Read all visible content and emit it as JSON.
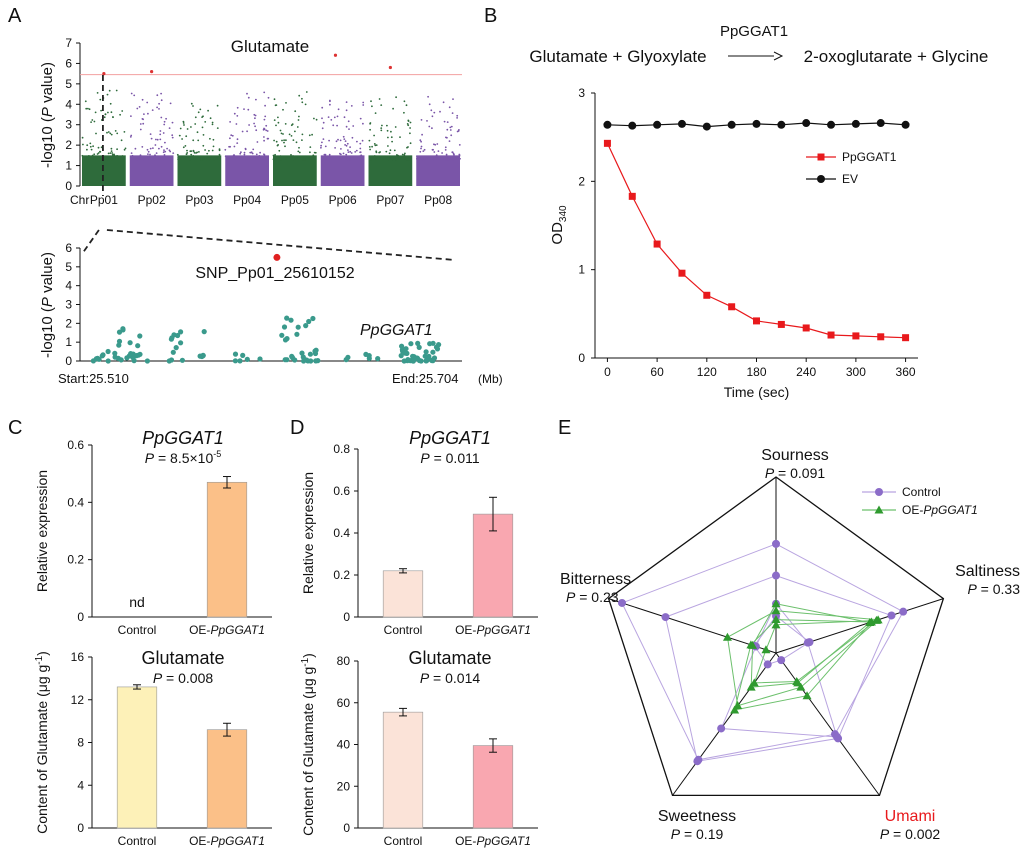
{
  "panels": {
    "a": "A",
    "b": "B",
    "c": "C",
    "d": "D",
    "e": "E"
  },
  "chart_data": [
    {
      "id": "A-manhattan",
      "type": "scatter",
      "title": "Glutamate",
      "ylabel": "-log10 (P value)",
      "ylabel_parts": {
        "pre": "-log10 (",
        "italic": "P",
        "post": " value)"
      },
      "xlabel": "Chr",
      "ylim": [
        0,
        7
      ],
      "yticks": [
        0,
        1,
        2,
        3,
        4,
        5,
        6,
        7
      ],
      "chromosomes": [
        "Pp01",
        "Pp02",
        "Pp03",
        "Pp04",
        "Pp05",
        "Pp06",
        "Pp07",
        "Pp08"
      ],
      "chromosome_colors": [
        "#2e6b3b",
        "#7a55a8",
        "#2e6b3b",
        "#7a55a8",
        "#2e6b3b",
        "#7a55a8",
        "#2e6b3b",
        "#7a55a8"
      ],
      "typical_max_neglog10p": [
        4.7,
        4.6,
        4.2,
        4.6,
        5.0,
        4.4,
        4.6,
        4.4
      ],
      "threshold": 5.45,
      "top_hits": [
        {
          "chr": "Pp01",
          "value": 5.5
        },
        {
          "chr": "Pp02",
          "value": 5.6
        },
        {
          "chr": "Pp06",
          "value": 6.4
        },
        {
          "chr": "Pp07",
          "value": 5.8
        }
      ]
    },
    {
      "id": "A-zoom",
      "type": "scatter",
      "ylabel": "-log10 (P value)",
      "ylabel_parts": {
        "pre": "-log10 (",
        "italic": "P",
        "post": " value)"
      },
      "ylim": [
        0,
        6
      ],
      "yticks": [
        0,
        1,
        2,
        3,
        4,
        5,
        6
      ],
      "start_label": "Start:25.510",
      "end_label": "End:25.704",
      "unit": "(Mb)",
      "snp_label": "SNP_Pp01_25610152",
      "gene_label": "PpGGAT1",
      "snp": {
        "position_mb": 25.61,
        "value": 5.5
      },
      "point_color": "#3a9a8c",
      "snp_color": "#e02020"
    },
    {
      "id": "B-enzyme-assay",
      "type": "line",
      "reaction": {
        "enzyme": "PpGGAT1",
        "substrates": "Glutamate + Glyoxylate",
        "products": "2-oxoglutarate + Glycine"
      },
      "xlabel": "Time (sec)",
      "ylabel": "OD",
      "ylabel_sub": "340",
      "xlim": [
        -15,
        375
      ],
      "ylim": [
        0,
        3
      ],
      "xticks": [
        0,
        60,
        120,
        180,
        240,
        300,
        360
      ],
      "yticks": [
        0,
        1,
        2,
        3
      ],
      "x": [
        0,
        30,
        60,
        90,
        120,
        150,
        180,
        210,
        240,
        270,
        300,
        330,
        360
      ],
      "series": [
        {
          "name": "PpGGAT1",
          "color": "#e8191c",
          "marker": "square",
          "values": [
            2.43,
            1.83,
            1.29,
            0.96,
            0.71,
            0.58,
            0.42,
            0.38,
            0.34,
            0.26,
            0.25,
            0.24,
            0.23
          ]
        },
        {
          "name": "EV",
          "color": "#111111",
          "marker": "circle",
          "values": [
            2.64,
            2.63,
            2.64,
            2.65,
            2.62,
            2.64,
            2.65,
            2.64,
            2.66,
            2.64,
            2.65,
            2.66,
            2.64
          ]
        }
      ],
      "legend_position": "right"
    },
    {
      "id": "C-top",
      "type": "bar",
      "title": "PpGGAT1",
      "p_text": "P = 8.5×10",
      "p_exp": "-5",
      "ylabel": "Relative expression",
      "categories": [
        "Control",
        "OE-PpGGAT1"
      ],
      "cat_parts": [
        {
          "pre": "Control",
          "it": ""
        },
        {
          "pre": "OE-",
          "it": "PpGGAT1"
        }
      ],
      "values": [
        0,
        0.47
      ],
      "errors": [
        0,
        0.02
      ],
      "colors": [
        "#fdf1b8",
        "#fbc088"
      ],
      "ylim": [
        0,
        0.6
      ],
      "yticks": [
        0,
        0.2,
        0.4,
        0.6
      ],
      "nd_label": "nd"
    },
    {
      "id": "C-bottom",
      "type": "bar",
      "title": "Glutamate",
      "p_text": "P = 0.008",
      "ylabel": "Content of Glutamate (μg g-1)",
      "ylabel_parts": {
        "pre": "Content of Glutamate (μg g",
        "sup": "-1",
        "post": ")"
      },
      "categories": [
        "Control",
        "OE-PpGGAT1"
      ],
      "cat_parts": [
        {
          "pre": "Control",
          "it": ""
        },
        {
          "pre": "OE-",
          "it": "PpGGAT1"
        }
      ],
      "values": [
        13.2,
        9.2
      ],
      "errors": [
        0.2,
        0.6
      ],
      "colors": [
        "#fdf1b8",
        "#fbc088"
      ],
      "ylim": [
        0,
        16
      ],
      "yticks": [
        0,
        4,
        8,
        12,
        16
      ]
    },
    {
      "id": "D-top",
      "type": "bar",
      "title": "PpGGAT1",
      "p_text": "P = 0.011",
      "ylabel": "Relative expression",
      "categories": [
        "Control",
        "OE-PpGGAT1"
      ],
      "cat_parts": [
        {
          "pre": "Control",
          "it": ""
        },
        {
          "pre": "OE-",
          "it": "PpGGAT1"
        }
      ],
      "values": [
        0.22,
        0.49
      ],
      "errors": [
        0.01,
        0.08
      ],
      "colors": [
        "#fbe3d8",
        "#f9a7b0"
      ],
      "ylim": [
        0,
        0.8
      ],
      "yticks": [
        0,
        0.2,
        0.4,
        0.6,
        0.8
      ]
    },
    {
      "id": "D-bottom",
      "type": "bar",
      "title": "Glutamate",
      "p_text": "P = 0.014",
      "ylabel": "Content of Glutamate (μg g-1)",
      "ylabel_parts": {
        "pre": "Content of Glutamate (μg g",
        "sup": "-1",
        "post": ")"
      },
      "categories": [
        "Control",
        "OE-PpGGAT1"
      ],
      "cat_parts": [
        {
          "pre": "Control",
          "it": ""
        },
        {
          "pre": "OE-",
          "it": "PpGGAT1"
        }
      ],
      "values": [
        55.5,
        39.5
      ],
      "errors": [
        1.8,
        3.2
      ],
      "colors": [
        "#fbe3d8",
        "#f9a7b0"
      ],
      "ylim": [
        0,
        80
      ],
      "yticks": [
        0,
        20,
        40,
        60,
        80
      ]
    },
    {
      "id": "E-radar",
      "type": "radar",
      "axes": [
        {
          "name": "Sourness",
          "p": "P = 0.091",
          "highlight": false
        },
        {
          "name": "Saltiness",
          "p": "P = 0.33",
          "highlight": false
        },
        {
          "name": "Umami",
          "p": "P = 0.002",
          "highlight": true
        },
        {
          "name": "Sweetness",
          "p": "P = 0.19",
          "highlight": false
        },
        {
          "name": "Bitterness",
          "p": "P = 0.23",
          "highlight": false
        }
      ],
      "rmax": 1.0,
      "highlight_color": "#e8191c",
      "series": [
        {
          "name": "Control",
          "name_parts": {
            "pre": "Control",
            "it": ""
          },
          "color": "#8b6cc8",
          "line_color": "#b9a5e0",
          "marker": "circle",
          "samples": [
            [
              0.62,
              0.76,
              0.57,
              0.75,
              0.92
            ],
            [
              0.44,
              0.69,
              0.6,
              0.76,
              0.66
            ],
            [
              0.28,
              0.19,
              0.59,
              0.53,
              0.12
            ],
            [
              0.21,
              0.2,
              0.05,
              0.08,
              0.13
            ]
          ]
        },
        {
          "name": "OE-PpGGAT1",
          "name_parts": {
            "pre": "OE-",
            "it": "PpGGAT1"
          },
          "color": "#2f9a2f",
          "line_color": "#6cc06c",
          "marker": "triangle",
          "samples": [
            [
              0.24,
              0.61,
              0.24,
              0.37,
              0.29
            ],
            [
              0.19,
              0.57,
              0.3,
              0.4,
              0.15
            ],
            [
              0.16,
              0.6,
              0.2,
              0.21,
              0.06
            ],
            [
              0.28,
              0.56,
              0.21,
              0.24,
              0.14
            ]
          ]
        }
      ]
    }
  ]
}
